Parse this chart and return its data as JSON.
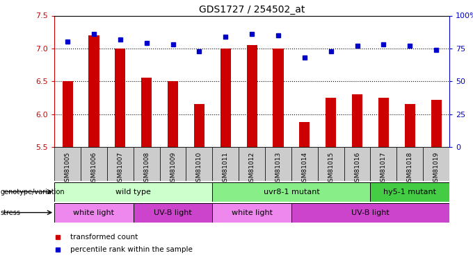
{
  "title": "GDS1727 / 254502_at",
  "samples": [
    "GSM81005",
    "GSM81006",
    "GSM81007",
    "GSM81008",
    "GSM81009",
    "GSM81010",
    "GSM81011",
    "GSM81012",
    "GSM81013",
    "GSM81014",
    "GSM81015",
    "GSM81016",
    "GSM81017",
    "GSM81018",
    "GSM81019"
  ],
  "bar_values": [
    6.5,
    7.2,
    7.0,
    6.55,
    6.5,
    6.15,
    7.0,
    7.05,
    7.0,
    5.88,
    6.25,
    6.3,
    6.25,
    6.15,
    6.22
  ],
  "dot_values": [
    80,
    86,
    82,
    79,
    78,
    73,
    84,
    86,
    85,
    68,
    73,
    77,
    78,
    77,
    74
  ],
  "ylim": [
    5.5,
    7.5
  ],
  "yticks": [
    5.5,
    6.0,
    6.5,
    7.0,
    7.5
  ],
  "y2lim": [
    0,
    100
  ],
  "y2ticks": [
    0,
    25,
    50,
    75,
    100
  ],
  "y2ticklabels": [
    "0",
    "25",
    "50",
    "75",
    "100%"
  ],
  "bar_color": "#cc0000",
  "dot_color": "#0000cc",
  "genotype_groups": [
    {
      "label": "wild type",
      "start": 0,
      "end": 6,
      "color": "#ccffcc"
    },
    {
      "label": "uvr8-1 mutant",
      "start": 6,
      "end": 12,
      "color": "#88ee88"
    },
    {
      "label": "hy5-1 mutant",
      "start": 12,
      "end": 15,
      "color": "#44cc44"
    }
  ],
  "stress_groups": [
    {
      "label": "white light",
      "start": 0,
      "end": 3,
      "color": "#ee88ee"
    },
    {
      "label": "UV-B light",
      "start": 3,
      "end": 6,
      "color": "#cc44cc"
    },
    {
      "label": "white light",
      "start": 6,
      "end": 9,
      "color": "#ee88ee"
    },
    {
      "label": "UV-B light",
      "start": 9,
      "end": 15,
      "color": "#cc44cc"
    }
  ],
  "legend_items": [
    {
      "label": "transformed count",
      "color": "#cc0000"
    },
    {
      "label": "percentile rank within the sample",
      "color": "#0000cc"
    }
  ],
  "group_separators": [
    5.5,
    11.5
  ],
  "xlabel_bg": "#cccccc"
}
